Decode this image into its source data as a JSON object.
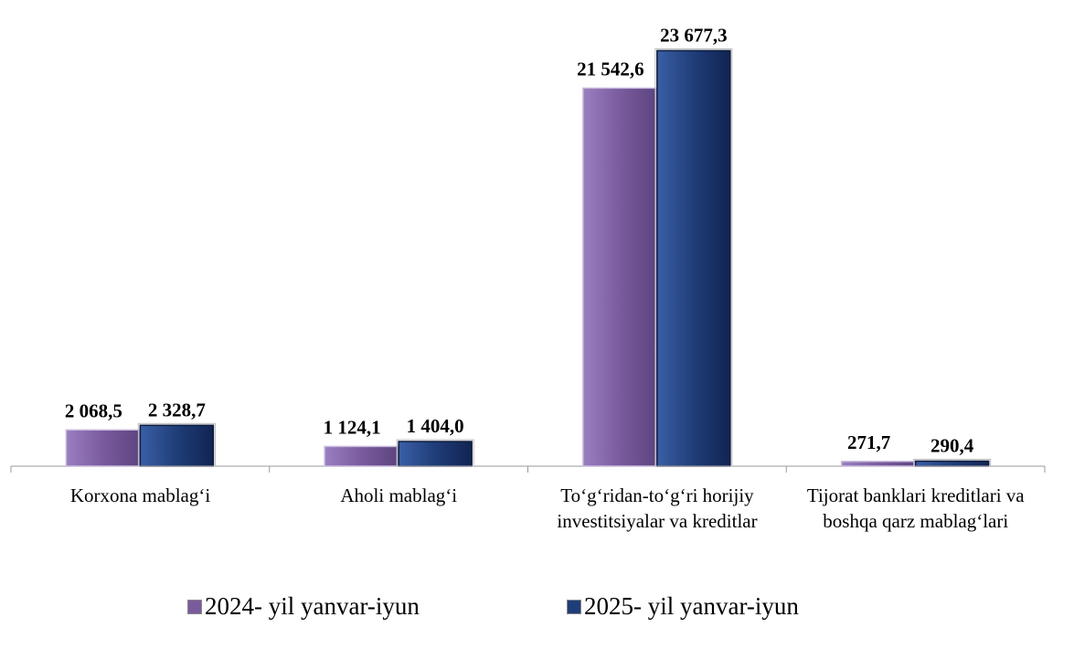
{
  "chart_data": {
    "type": "bar",
    "categories": [
      "Korxona mablag‘i",
      "Aholi mablag‘i",
      "To‘g‘ridan-to‘g‘ri horijiy investitsiyalar va kreditlar",
      "Tijorat banklari kreditlari va boshqa qarz mablag‘lari"
    ],
    "series": [
      {
        "name": "2024- yil yanvar-iyun",
        "color": "#7a5b9e",
        "values": [
          2068.5,
          1124.1,
          21542.6,
          271.7
        ],
        "value_labels": [
          "2 068,5",
          "1 124,1",
          "21 542,6",
          "271,7"
        ]
      },
      {
        "name": "2025- yil yanvar-iyun",
        "color": "#1f3d78",
        "values": [
          2328.7,
          1404.0,
          23677.3,
          290.4
        ],
        "value_labels": [
          "2 328,7",
          "1 404,0",
          "23 677,3",
          "290,4"
        ]
      }
    ],
    "ylim": [
      0,
      25000
    ]
  }
}
